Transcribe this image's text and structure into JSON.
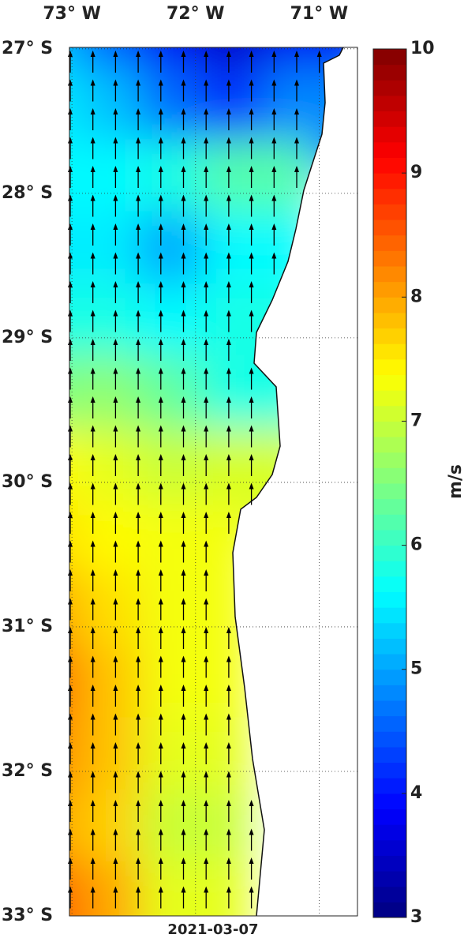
{
  "map": {
    "type": "field",
    "unit_label": "m/s",
    "date": "2021-03-07",
    "xlim": [
      -73.02,
      -70.69
    ],
    "ylim": [
      -33,
      -26.99
    ],
    "lon_ticks": [
      {
        "value": -73,
        "label": "73° W"
      },
      {
        "value": -72,
        "label": "72° W"
      },
      {
        "value": -71,
        "label": "71° W"
      }
    ],
    "lat_ticks": [
      {
        "value": -27,
        "label": "27° S"
      },
      {
        "value": -28,
        "label": "28° S"
      },
      {
        "value": -29,
        "label": "29° S"
      },
      {
        "value": -30,
        "label": "30° S"
      },
      {
        "value": -31,
        "label": "31° S"
      },
      {
        "value": -32,
        "label": "32° S"
      },
      {
        "value": -33,
        "label": "33° S"
      }
    ],
    "clim": [
      3,
      10
    ],
    "cticks": [
      3,
      4,
      5,
      6,
      7,
      8,
      9,
      10
    ],
    "grid_lons": [
      -73,
      -72.5,
      -72,
      -71.5,
      -71
    ],
    "grid_lats": [
      -27,
      -27.5,
      -28,
      -28.5,
      -29,
      -29.5,
      -30,
      -30.5,
      -31,
      -31.5,
      -32,
      -32.5,
      -33
    ],
    "speed": [
      [
        5.2,
        4.5,
        3.8,
        3.5,
        3.8
      ],
      [
        5.5,
        5.2,
        4.6,
        4.2,
        4.8
      ],
      [
        5.6,
        5.6,
        5.8,
        6.2,
        null
      ],
      [
        5.5,
        5.5,
        5.0,
        5.6,
        null
      ],
      [
        5.8,
        5.8,
        5.6,
        5.8,
        null
      ],
      [
        6.5,
        6.6,
        6.3,
        5.8,
        null
      ],
      [
        7.4,
        7.2,
        7.0,
        7.1,
        null
      ],
      [
        7.6,
        7.4,
        7.3,
        null,
        null
      ],
      [
        8.0,
        7.6,
        7.3,
        null,
        null
      ],
      [
        8.4,
        7.8,
        7.3,
        null,
        null
      ],
      [
        8.2,
        7.8,
        7.2,
        null,
        null
      ],
      [
        8.0,
        7.7,
        7.0,
        null,
        null
      ],
      [
        8.5,
        8.0,
        7.2,
        null,
        null
      ]
    ]
  }
}
